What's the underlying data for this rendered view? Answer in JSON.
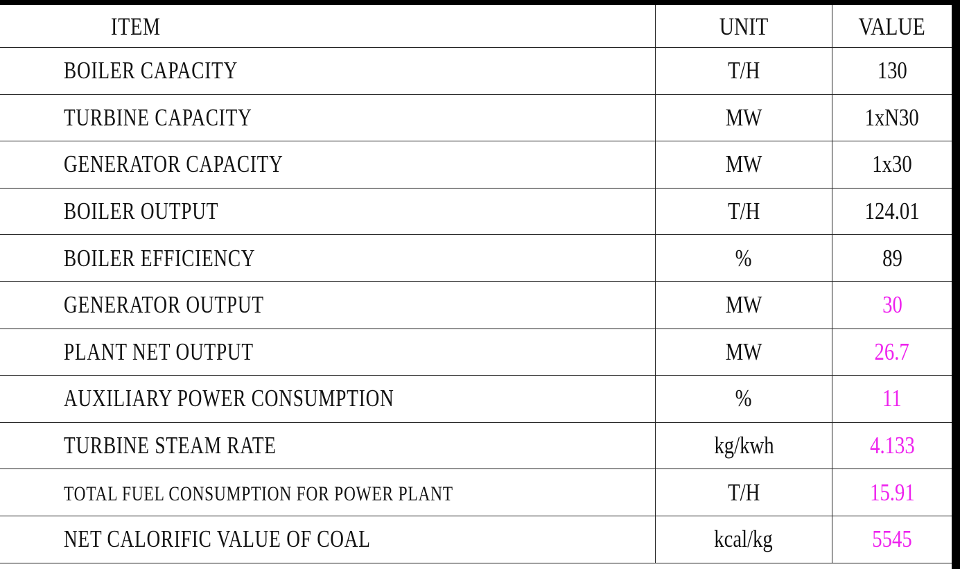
{
  "table": {
    "headers": {
      "item": "ITEM",
      "unit": "UNIT",
      "value": "VALUE"
    },
    "rows": [
      {
        "item": "BOILER CAPACITY",
        "unit": "T/H",
        "value": "130",
        "highlight": false
      },
      {
        "item": "TURBINE CAPACITY",
        "unit": "MW",
        "value": "1xN30",
        "highlight": false
      },
      {
        "item": "GENERATOR CAPACITY",
        "unit": "MW",
        "value": "1x30",
        "highlight": false
      },
      {
        "item": "BOILER OUTPUT",
        "unit": "T/H",
        "value": "124.01",
        "highlight": false
      },
      {
        "item": "BOILER EFFICIENCY",
        "unit": "%",
        "value": "89",
        "highlight": false
      },
      {
        "item": "GENERATOR OUTPUT",
        "unit": "MW",
        "value": "30",
        "highlight": true
      },
      {
        "item": "PLANT NET OUTPUT",
        "unit": "MW",
        "value": "26.7",
        "highlight": true
      },
      {
        "item": "AUXILIARY POWER CONSUMPTION",
        "unit": "%",
        "value": "11",
        "highlight": true
      },
      {
        "item": "TURBINE STEAM RATE",
        "unit": "kg/kwh",
        "value": "4.133",
        "highlight": true
      },
      {
        "item": "TOTAL FUEL CONSUMPTION FOR POWER PLANT",
        "unit": "T/H",
        "value": "15.91",
        "highlight": true
      },
      {
        "item": "NET CALORIFIC VALUE OF COAL",
        "unit": "kcal/kg",
        "value": "5545",
        "highlight": true
      }
    ]
  },
  "colors": {
    "highlight": "#ee22ee",
    "text": "#111111",
    "frame": "#000000"
  }
}
